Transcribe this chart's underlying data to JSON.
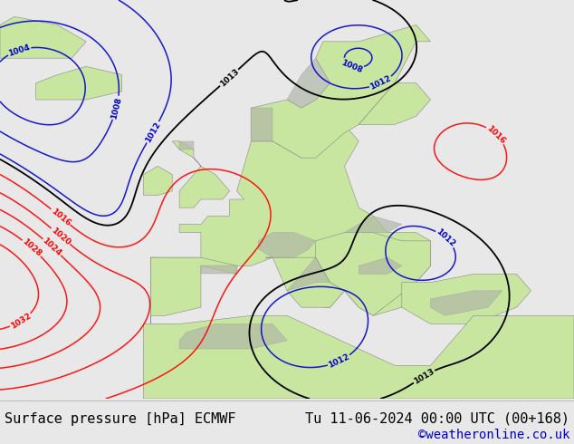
{
  "title_left": "Surface pressure [hPa] ECMWF",
  "title_right": "Tu 11-06-2024 00:00 UTC (00+168)",
  "credit": "©weatheronline.co.uk",
  "footer_bg": "#e8e8e8",
  "footer_text_color": "#000000",
  "credit_color": "#0000cc",
  "ocean_color": "#d0d8e0",
  "land_color": "#c8e6a0",
  "terrain_color": "#b0b8a8",
  "font_size_footer": 11,
  "font_size_credit": 10
}
